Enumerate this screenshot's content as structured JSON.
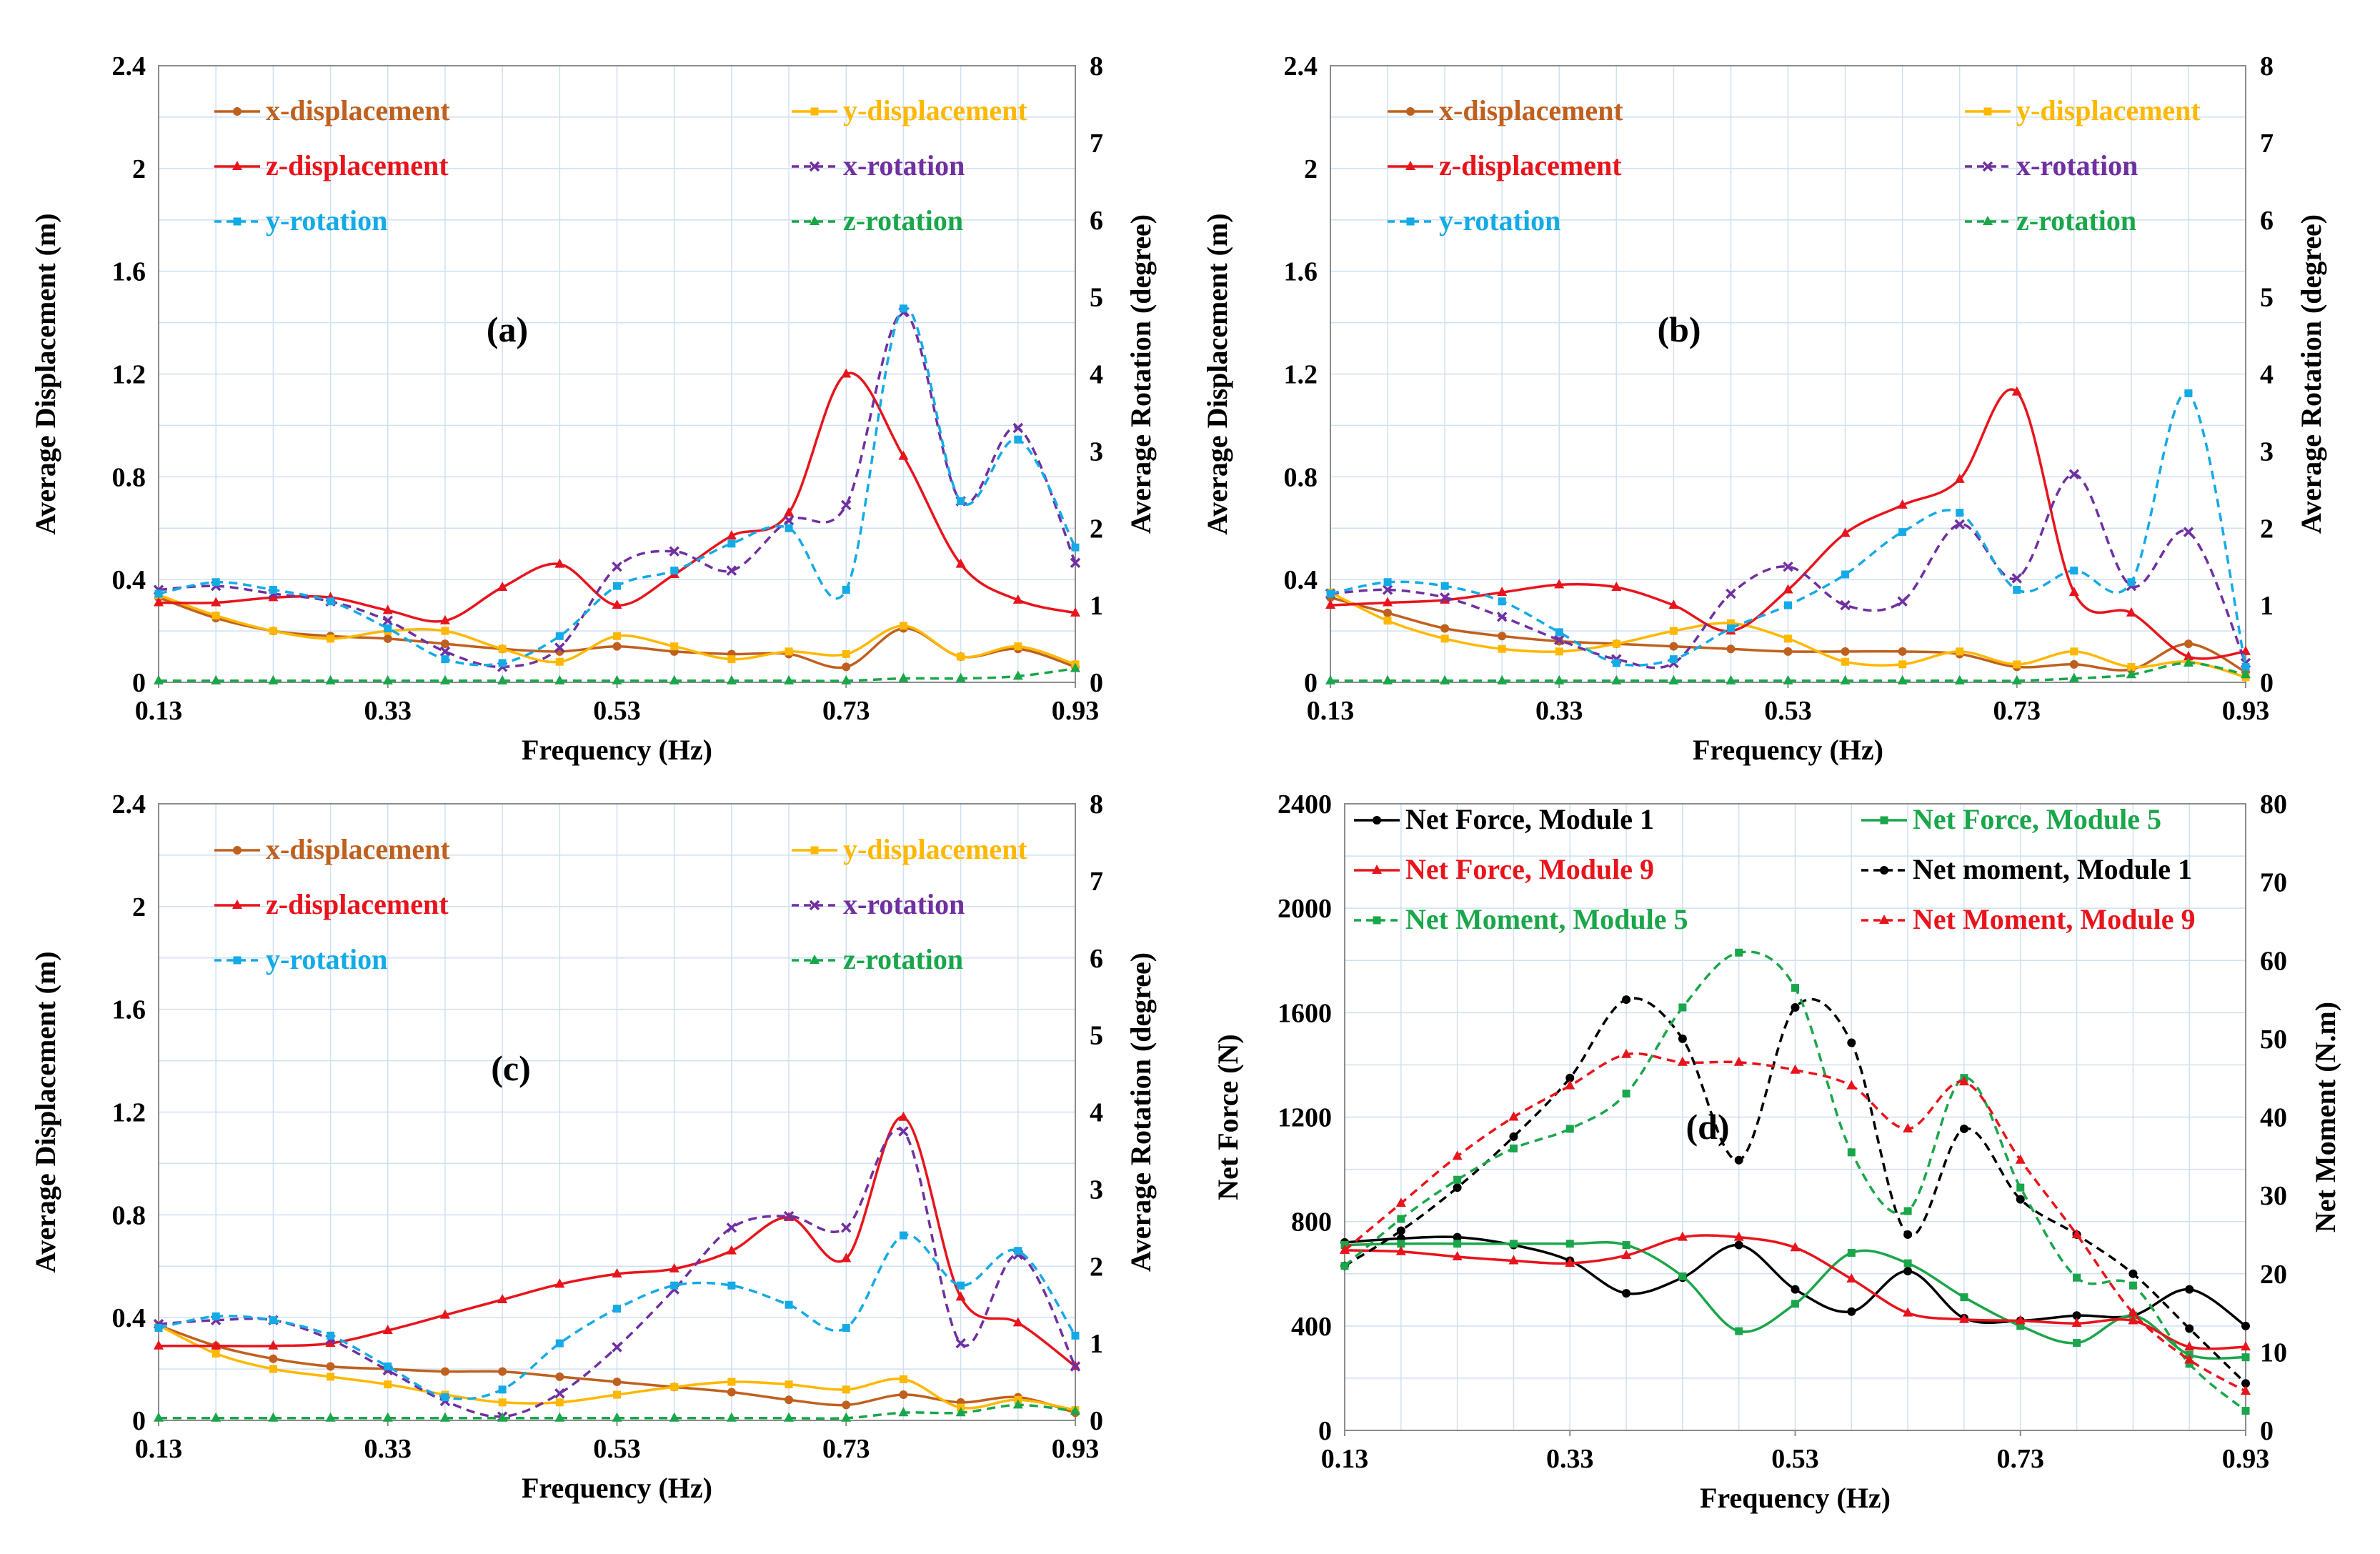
{
  "chart_data": [
    {
      "id": "a",
      "type": "line",
      "panel_label": "(a)",
      "xlabel": "Frequency (Hz)",
      "ylabel": "Average Displacement (m)",
      "y2label": "Average Rotation (degree)",
      "xlim": [
        0.13,
        0.93
      ],
      "ylim": [
        0,
        2.4
      ],
      "y2lim": [
        0,
        8
      ],
      "xticks": [
        "0.13",
        "0.33",
        "0.53",
        "0.73",
        "0.93"
      ],
      "yticks": [
        "0",
        "0.4",
        "0.8",
        "1.2",
        "1.6",
        "2",
        "2.4"
      ],
      "y2ticks": [
        "0",
        "1",
        "2",
        "3",
        "4",
        "5",
        "6",
        "7",
        "8"
      ],
      "legend_position": "top-left",
      "x": [
        0.13,
        0.18,
        0.23,
        0.28,
        0.33,
        0.38,
        0.43,
        0.48,
        0.53,
        0.58,
        0.63,
        0.68,
        0.73,
        0.78,
        0.83,
        0.88,
        0.93
      ],
      "series": [
        {
          "name": "x-displacement",
          "axis": "left",
          "color": "#c0601e",
          "dash": false,
          "marker": "circle",
          "values": [
            0.33,
            0.25,
            0.2,
            0.18,
            0.17,
            0.15,
            0.13,
            0.12,
            0.14,
            0.12,
            0.11,
            0.11,
            0.06,
            0.21,
            0.1,
            0.13,
            0.06
          ]
        },
        {
          "name": "y-displacement",
          "axis": "left",
          "color": "#ffb800",
          "dash": false,
          "marker": "square",
          "values": [
            0.34,
            0.26,
            0.2,
            0.17,
            0.2,
            0.2,
            0.13,
            0.08,
            0.18,
            0.14,
            0.09,
            0.12,
            0.11,
            0.22,
            0.1,
            0.14,
            0.07
          ]
        },
        {
          "name": "z-displacement",
          "axis": "left",
          "color": "#e8141c",
          "dash": false,
          "marker": "triangle",
          "values": [
            0.31,
            0.31,
            0.33,
            0.33,
            0.28,
            0.24,
            0.37,
            0.46,
            0.3,
            0.42,
            0.57,
            0.66,
            1.2,
            0.88,
            0.46,
            0.32,
            0.27
          ]
        },
        {
          "name": "x-rotation",
          "axis": "right",
          "color": "#7030a0",
          "dash": true,
          "marker": "cross",
          "values": [
            1.2,
            1.25,
            1.15,
            1.05,
            0.8,
            0.4,
            0.2,
            0.45,
            1.5,
            1.7,
            1.45,
            2.1,
            2.3,
            4.8,
            2.35,
            3.3,
            1.55
          ]
        },
        {
          "name": "y-rotation",
          "axis": "right",
          "color": "#14aae6",
          "dash": true,
          "marker": "square",
          "values": [
            1.15,
            1.3,
            1.2,
            1.05,
            0.7,
            0.3,
            0.25,
            0.6,
            1.25,
            1.45,
            1.8,
            2.0,
            1.2,
            4.85,
            2.35,
            3.15,
            1.75
          ]
        },
        {
          "name": "z-rotation",
          "axis": "right",
          "color": "#1aa64a",
          "dash": true,
          "marker": "triangle",
          "values": [
            0.02,
            0.02,
            0.02,
            0.02,
            0.02,
            0.02,
            0.02,
            0.02,
            0.02,
            0.02,
            0.02,
            0.02,
            0.02,
            0.05,
            0.05,
            0.08,
            0.18
          ]
        }
      ]
    },
    {
      "id": "b",
      "type": "line",
      "panel_label": "(b)",
      "xlabel": "Frequency (Hz)",
      "ylabel": "Average Displacement (m)",
      "y2label": "Average Rotation (degree)",
      "xlim": [
        0.13,
        0.93
      ],
      "ylim": [
        0,
        2.4
      ],
      "y2lim": [
        0,
        8
      ],
      "xticks": [
        "0.13",
        "0.33",
        "0.53",
        "0.73",
        "0.93"
      ],
      "yticks": [
        "0",
        "0.4",
        "0.8",
        "1.2",
        "1.6",
        "2",
        "2.4"
      ],
      "y2ticks": [
        "0",
        "1",
        "2",
        "3",
        "4",
        "5",
        "6",
        "7",
        "8"
      ],
      "legend_position": "top-left",
      "x": [
        0.13,
        0.18,
        0.23,
        0.28,
        0.33,
        0.38,
        0.43,
        0.48,
        0.53,
        0.58,
        0.63,
        0.68,
        0.73,
        0.78,
        0.83,
        0.88,
        0.93
      ],
      "series": [
        {
          "name": "x-displacement",
          "axis": "left",
          "color": "#c0601e",
          "dash": false,
          "marker": "circle",
          "values": [
            0.33,
            0.27,
            0.21,
            0.18,
            0.16,
            0.15,
            0.14,
            0.13,
            0.12,
            0.12,
            0.12,
            0.11,
            0.06,
            0.07,
            0.05,
            0.15,
            0.04
          ]
        },
        {
          "name": "y-displacement",
          "axis": "left",
          "color": "#ffb800",
          "dash": false,
          "marker": "square",
          "values": [
            0.35,
            0.24,
            0.17,
            0.13,
            0.12,
            0.15,
            0.2,
            0.23,
            0.17,
            0.08,
            0.07,
            0.12,
            0.07,
            0.12,
            0.06,
            0.08,
            0.02
          ]
        },
        {
          "name": "z-displacement",
          "axis": "left",
          "color": "#e8141c",
          "dash": false,
          "marker": "triangle",
          "values": [
            0.3,
            0.31,
            0.32,
            0.35,
            0.38,
            0.37,
            0.3,
            0.2,
            0.36,
            0.58,
            0.69,
            0.79,
            1.13,
            0.35,
            0.27,
            0.1,
            0.12
          ]
        },
        {
          "name": "x-rotation",
          "axis": "right",
          "color": "#7030a0",
          "dash": true,
          "marker": "cross",
          "values": [
            1.15,
            1.2,
            1.1,
            0.85,
            0.55,
            0.3,
            0.25,
            1.15,
            1.5,
            1.0,
            1.05,
            2.05,
            1.35,
            2.7,
            1.25,
            1.95,
            0.25
          ]
        },
        {
          "name": "y-rotation",
          "axis": "right",
          "color": "#14aae6",
          "dash": true,
          "marker": "square",
          "values": [
            1.15,
            1.3,
            1.25,
            1.05,
            0.65,
            0.25,
            0.3,
            0.7,
            1.0,
            1.4,
            1.95,
            2.2,
            1.2,
            1.45,
            1.3,
            3.75,
            0.2
          ]
        },
        {
          "name": "z-rotation",
          "axis": "right",
          "color": "#1aa64a",
          "dash": true,
          "marker": "triangle",
          "values": [
            0.02,
            0.02,
            0.02,
            0.02,
            0.02,
            0.02,
            0.02,
            0.02,
            0.02,
            0.02,
            0.02,
            0.02,
            0.02,
            0.05,
            0.1,
            0.25,
            0.1
          ]
        }
      ]
    },
    {
      "id": "c",
      "type": "line",
      "panel_label": "(c)",
      "xlabel": "Frequency (Hz)",
      "ylabel": "Average Displacement (m)",
      "y2label": "Average Rotation (degree)",
      "xlim": [
        0.13,
        0.93
      ],
      "ylim": [
        0,
        2.4
      ],
      "y2lim": [
        0,
        8
      ],
      "xticks": [
        "0.13",
        "0.33",
        "0.53",
        "0.73",
        "0.93"
      ],
      "yticks": [
        "0",
        "0.4",
        "0.8",
        "1.2",
        "1.6",
        "2",
        "2.4"
      ],
      "y2ticks": [
        "0",
        "1",
        "2",
        "3",
        "4",
        "5",
        "6",
        "7",
        "8"
      ],
      "legend_position": "top-left",
      "x": [
        0.13,
        0.18,
        0.23,
        0.28,
        0.33,
        0.38,
        0.43,
        0.48,
        0.53,
        0.58,
        0.63,
        0.68,
        0.73,
        0.78,
        0.83,
        0.88,
        0.93
      ],
      "series": [
        {
          "name": "x-displacement",
          "axis": "left",
          "color": "#c0601e",
          "dash": false,
          "marker": "circle",
          "values": [
            0.37,
            0.29,
            0.24,
            0.21,
            0.2,
            0.19,
            0.19,
            0.17,
            0.15,
            0.13,
            0.11,
            0.08,
            0.06,
            0.1,
            0.07,
            0.09,
            0.03
          ]
        },
        {
          "name": "y-displacement",
          "axis": "left",
          "color": "#ffb800",
          "dash": false,
          "marker": "square",
          "values": [
            0.37,
            0.26,
            0.2,
            0.17,
            0.14,
            0.1,
            0.07,
            0.07,
            0.1,
            0.13,
            0.15,
            0.14,
            0.12,
            0.16,
            0.05,
            0.08,
            0.04
          ]
        },
        {
          "name": "z-displacement",
          "axis": "left",
          "color": "#e8141c",
          "dash": false,
          "marker": "triangle",
          "values": [
            0.29,
            0.29,
            0.29,
            0.3,
            0.35,
            0.41,
            0.47,
            0.53,
            0.57,
            0.59,
            0.66,
            0.79,
            0.63,
            1.18,
            0.48,
            0.38,
            0.21
          ]
        },
        {
          "name": "x-rotation",
          "axis": "right",
          "color": "#7030a0",
          "dash": true,
          "marker": "cross",
          "values": [
            1.25,
            1.3,
            1.3,
            1.05,
            0.65,
            0.25,
            0.05,
            0.35,
            0.95,
            1.7,
            2.5,
            2.65,
            2.5,
            3.75,
            1.0,
            2.15,
            0.7
          ]
        },
        {
          "name": "y-rotation",
          "axis": "right",
          "color": "#14aae6",
          "dash": true,
          "marker": "square",
          "values": [
            1.2,
            1.35,
            1.3,
            1.1,
            0.7,
            0.3,
            0.4,
            1.0,
            1.45,
            1.75,
            1.75,
            1.5,
            1.2,
            2.4,
            1.75,
            2.2,
            1.1
          ]
        },
        {
          "name": "z-rotation",
          "axis": "right",
          "color": "#1aa64a",
          "dash": true,
          "marker": "triangle",
          "values": [
            0.03,
            0.03,
            0.03,
            0.03,
            0.03,
            0.03,
            0.03,
            0.03,
            0.03,
            0.03,
            0.03,
            0.03,
            0.03,
            0.1,
            0.1,
            0.2,
            0.12
          ]
        }
      ]
    },
    {
      "id": "d",
      "type": "line",
      "panel_label": "(d)",
      "xlabel": "Frequency (Hz)",
      "ylabel": "Net Force (N)",
      "y2label": "Net Moment (N.m)",
      "xlim": [
        0.13,
        0.93
      ],
      "ylim": [
        0,
        2400
      ],
      "y2lim": [
        0,
        80
      ],
      "xticks": [
        "0.13",
        "0.33",
        "0.53",
        "0.73",
        "0.93"
      ],
      "yticks": [
        "0",
        "400",
        "800",
        "1200",
        "1600",
        "2000",
        "2400"
      ],
      "y2ticks": [
        "0",
        "10",
        "20",
        "30",
        "40",
        "50",
        "60",
        "70",
        "80"
      ],
      "legend_position": "top-left",
      "x": [
        0.13,
        0.18,
        0.23,
        0.28,
        0.33,
        0.38,
        0.43,
        0.48,
        0.53,
        0.58,
        0.63,
        0.68,
        0.73,
        0.78,
        0.83,
        0.88,
        0.93
      ],
      "series": [
        {
          "name": "Net Force, Module 1",
          "axis": "left",
          "color": "#000000",
          "dash": false,
          "marker": "circle",
          "values": [
            720,
            735,
            740,
            710,
            650,
            525,
            585,
            710,
            540,
            455,
            610,
            430,
            420,
            440,
            440,
            540,
            400
          ]
        },
        {
          "name": "Net Force, Module 5",
          "axis": "left",
          "color": "#1aa64a",
          "dash": false,
          "marker": "square",
          "values": [
            710,
            715,
            715,
            715,
            715,
            710,
            590,
            380,
            485,
            680,
            640,
            510,
            400,
            335,
            440,
            290,
            280
          ]
        },
        {
          "name": "Net Force, Module 9",
          "axis": "left",
          "color": "#e8141c",
          "dash": false,
          "marker": "triangle",
          "values": [
            690,
            685,
            665,
            650,
            640,
            670,
            740,
            740,
            700,
            580,
            450,
            425,
            420,
            410,
            420,
            320,
            320
          ]
        },
        {
          "name": "Net moment, Module 1",
          "axis": "right",
          "color": "#000000",
          "dash": true,
          "marker": "circle",
          "values": [
            21,
            25.5,
            31,
            37.5,
            45,
            55,
            50,
            34.5,
            54,
            49.5,
            25,
            38.5,
            29.5,
            25,
            20,
            13,
            6
          ]
        },
        {
          "name": "Net Moment, Module 5",
          "axis": "right",
          "color": "#1aa64a",
          "dash": true,
          "marker": "square",
          "values": [
            21,
            27,
            32,
            36,
            38.5,
            43,
            54,
            61,
            56.5,
            35.5,
            28,
            45,
            31,
            19.5,
            18.5,
            8.5,
            2.5
          ]
        },
        {
          "name": "Net Moment, Module 9",
          "axis": "right",
          "color": "#e8141c",
          "dash": true,
          "marker": "triangle",
          "values": [
            23,
            29,
            35,
            40,
            44,
            48,
            47,
            47,
            46,
            44,
            38.5,
            44.5,
            34.5,
            25,
            15,
            9,
            5
          ]
        }
      ]
    }
  ]
}
